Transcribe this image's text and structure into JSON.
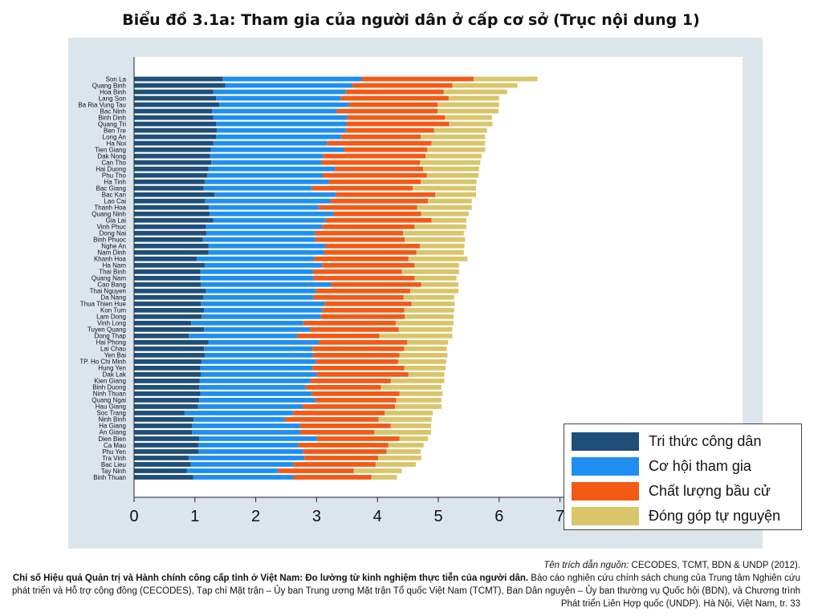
{
  "title": "Biểu đồ 3.1a: Tham gia của người dân ở cấp cơ sở (Trục nội dung 1)",
  "legend": [
    {
      "label": "Tri thức công dân",
      "color": "#1f4e79"
    },
    {
      "label": "Cơ hội tham gia",
      "color": "#1e8ff0"
    },
    {
      "label": "Chất lượng bầu cử",
      "color": "#f25a16"
    },
    {
      "label": "Đóng góp tự nguyện",
      "color": "#d9c56a"
    }
  ],
  "source": {
    "cite_label": "Tên trích dẫn nguồn:",
    "cite_text": " CECODES, TCMT, BDN & UNDP (2012).",
    "bold_text": "Chỉ số Hiệu quả Quản trị và Hành chính công cấp tỉnh ở Việt Nam: Đo lường từ kinh nghiệm thực tiễn của người dân.",
    "rest_text": " Báo cáo nghiên cứu chính sách chung của Trung tâm Nghiên cứu phát triển và Hỗ trợ cộng đồng (CECODES), Tạp chí Mặt trận – Ủy ban Trung ương Mặt trận Tổ quốc Việt Nam (TCMT), Ban Dân nguyện – Ủy ban thường vụ Quốc hội (BDN), và Chương trình Phát triển Liên Hợp quốc (UNDP). Hà Nội, Việt Nam, tr. 33"
  },
  "chart_data": {
    "type": "bar",
    "orientation": "horizontal",
    "stacked": true,
    "xlim": [
      0,
      10
    ],
    "xticks": [
      "0",
      "1",
      "2",
      "3",
      "4",
      "5",
      "6",
      "7",
      "8",
      "9",
      "10"
    ],
    "legend_position": "bottom-right",
    "categories": [
      "Son La",
      "Quang Binh",
      "Hoa Binh",
      "Lang Son",
      "Ba Ria Vung Tau",
      "Bac Ninh",
      "Binh Dinh",
      "Quang Tri",
      "Ben Tre",
      "Long An",
      "Ha Noi",
      "Tien Giang",
      "Dak Nong",
      "Can Tho",
      "Hai Duong",
      "Phu Tho",
      "Ha Tinh",
      "Bac Giang",
      "Bac Kan",
      "Lao Cai",
      "Thanh Hoa",
      "Quang Ninh",
      "Gia Lai",
      "Vinh Phuc",
      "Dong Nai",
      "Binh Phuoc",
      "Nghe An",
      "Nam Dinh",
      "Khanh Hoa",
      "Ha Nam",
      "Thai Binh",
      "Quang Nam",
      "Cao Bang",
      "Thai Nguyen",
      "Da Nang",
      "Thua Thien Hue",
      "Kon Tum",
      "Lam Dong",
      "Vinh Long",
      "Tuyen Quang",
      "Dong Thap",
      "Hai Phong",
      "Lai Chau",
      "Yen Bai",
      "TP. Ho Chi Minh",
      "Hung Yen",
      "Dak Lak",
      "Kien Giang",
      "Binh Duong",
      "Ninh Thuan",
      "Quang Ngai",
      "Hau Giang",
      "Soc Trang",
      "Ninh Binh",
      "Ha Giang",
      "An Giang",
      "Dien Bien",
      "Ca Mau",
      "Phu Yen",
      "Tra Vinh",
      "Bac Lieu",
      "Tay Ninh",
      "Binh Thuan"
    ],
    "series": [
      {
        "name": "Tri thức công dân",
        "values": [
          1.46,
          1.5,
          1.3,
          1.35,
          1.4,
          1.28,
          1.3,
          1.35,
          1.36,
          1.35,
          1.3,
          1.26,
          1.25,
          1.27,
          1.22,
          1.2,
          1.16,
          1.14,
          1.32,
          1.17,
          1.23,
          1.24,
          1.3,
          1.18,
          1.19,
          1.13,
          1.22,
          1.22,
          1.03,
          1.16,
          1.09,
          1.09,
          1.1,
          1.18,
          1.14,
          1.1,
          1.15,
          1.11,
          0.94,
          1.15,
          0.9,
          1.22,
          1.15,
          1.16,
          1.11,
          1.09,
          1.1,
          1.08,
          1.07,
          1.09,
          1.07,
          1.05,
          0.83,
          0.98,
          0.95,
          0.95,
          1.07,
          1.06,
          1.06,
          0.9,
          0.93,
          0.87,
          0.97
        ]
      },
      {
        "name": "Cơ hội tham gia",
        "values": [
          2.28,
          2.09,
          2.18,
          2.05,
          2.13,
          2.05,
          2.2,
          2.14,
          2.12,
          2.05,
          1.87,
          2.19,
          1.86,
          1.81,
          2.08,
          1.9,
          2.04,
          1.78,
          2.0,
          2.06,
          1.8,
          2.04,
          1.85,
          1.91,
          1.78,
          1.85,
          1.92,
          1.9,
          1.93,
          1.93,
          1.85,
          1.86,
          2.14,
          1.8,
          1.81,
          2.03,
          1.94,
          1.96,
          1.84,
          1.74,
          1.78,
          1.82,
          1.78,
          1.78,
          1.88,
          1.84,
          1.9,
          1.82,
          1.75,
          1.83,
          1.91,
          1.72,
          1.78,
          1.5,
          1.78,
          1.78,
          1.93,
          1.64,
          1.72,
          1.9,
          1.69,
          1.49,
          1.65
        ]
      },
      {
        "name": "Chất lượng bầu cử",
        "values": [
          1.84,
          1.64,
          1.61,
          1.77,
          1.46,
          1.66,
          1.61,
          1.69,
          1.45,
          1.31,
          1.72,
          1.37,
          1.68,
          1.62,
          1.45,
          1.71,
          1.51,
          1.66,
          1.63,
          1.6,
          1.62,
          1.44,
          1.74,
          1.52,
          1.45,
          1.47,
          1.56,
          1.52,
          1.55,
          1.52,
          1.46,
          1.66,
          1.48,
          1.56,
          1.48,
          1.43,
          1.35,
          1.38,
          1.52,
          1.46,
          1.35,
          1.45,
          1.51,
          1.42,
          1.35,
          1.51,
          1.51,
          1.32,
          1.24,
          1.44,
          1.33,
          1.52,
          1.51,
          1.54,
          1.49,
          1.22,
          1.36,
          1.48,
          1.37,
          1.21,
          1.35,
          1.25,
          1.28
        ]
      },
      {
        "name": "Đóng góp tự nguyện",
        "values": [
          1.05,
          1.07,
          1.04,
          0.83,
          1.01,
          1.0,
          0.77,
          0.71,
          0.87,
          1.06,
          0.88,
          0.95,
          0.92,
          0.99,
          0.92,
          0.85,
          0.92,
          1.04,
          0.67,
          0.72,
          0.9,
          0.78,
          0.57,
          0.85,
          1.0,
          0.99,
          0.73,
          0.78,
          0.97,
          0.73,
          0.94,
          0.69,
          0.61,
          0.79,
          0.83,
          0.71,
          0.82,
          0.8,
          0.95,
          0.88,
          1.2,
          0.67,
          0.7,
          0.79,
          0.79,
          0.68,
          0.59,
          0.88,
          0.99,
          0.71,
          0.74,
          0.76,
          0.79,
          0.87,
          0.66,
          0.93,
          0.47,
          0.58,
          0.56,
          0.71,
          0.66,
          0.79,
          0.42
        ]
      }
    ]
  }
}
